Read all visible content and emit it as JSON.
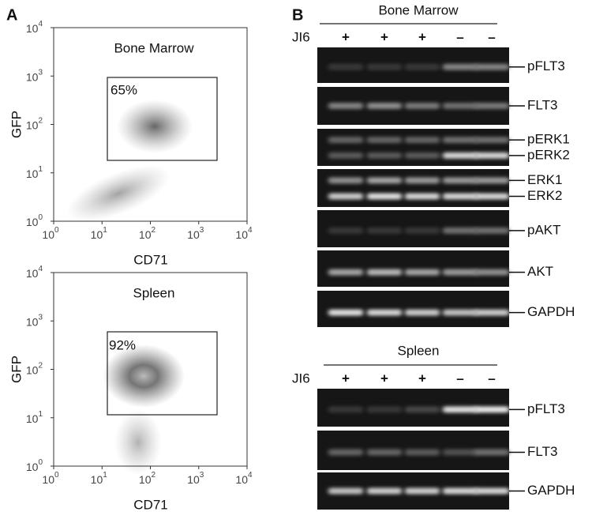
{
  "panel_a": {
    "label": "A",
    "ticks": [
      {
        "base": "10",
        "exp": "0"
      },
      {
        "base": "10",
        "exp": "1"
      },
      {
        "base": "10",
        "exp": "2"
      },
      {
        "base": "10",
        "exp": "3"
      },
      {
        "base": "10",
        "exp": "4"
      }
    ],
    "plots": [
      {
        "title": "Bone Marrow",
        "gate": "65%",
        "x_label": "CD71",
        "y_label": "GFP"
      },
      {
        "title": "Spleen",
        "gate": "92%",
        "x_label": "CD71",
        "y_label": "GFP"
      }
    ]
  },
  "panel_b": {
    "label": "B",
    "groups": [
      {
        "title": "Bone Marrow",
        "treatment": "JI6",
        "lanes": [
          "+",
          "+",
          "+",
          "–",
          "–"
        ],
        "blots": [
          {
            "labels": [
              "pFLT3"
            ]
          },
          {
            "labels": [
              "FLT3"
            ]
          },
          {
            "labels": [
              "pERK1",
              "pERK2"
            ]
          },
          {
            "labels": [
              "ERK1",
              "ERK2"
            ]
          },
          {
            "labels": [
              "pAKT"
            ]
          },
          {
            "labels": [
              "AKT"
            ]
          },
          {
            "labels": [
              "GAPDH"
            ]
          }
        ]
      },
      {
        "title": "Spleen",
        "treatment": "JI6",
        "lanes": [
          "+",
          "+",
          "+",
          "–",
          "–"
        ],
        "blots": [
          {
            "labels": [
              "pFLT3"
            ]
          },
          {
            "labels": [
              "FLT3"
            ]
          },
          {
            "labels": [
              "GAPDH"
            ]
          }
        ]
      }
    ]
  }
}
